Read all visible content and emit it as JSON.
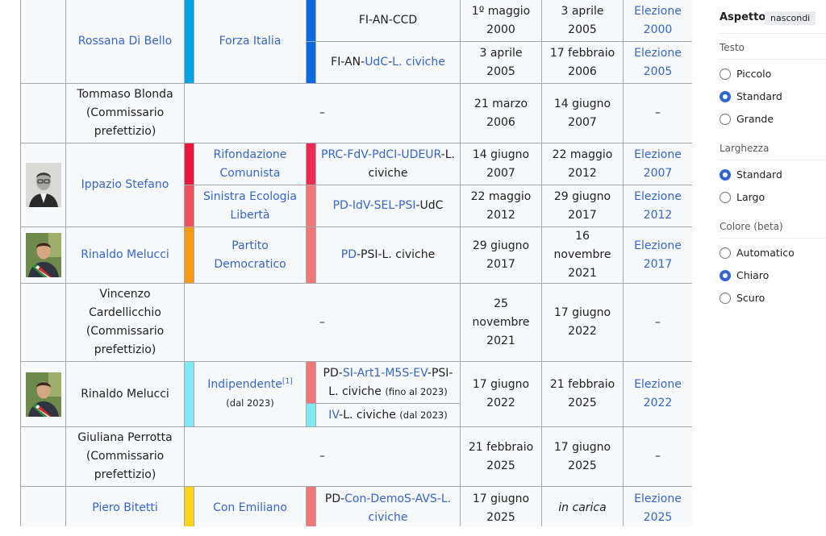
{
  "rows": {
    "r1": {
      "name": "Rossana Di Bello",
      "party": "Forza Italia",
      "coal_a": "FI-AN-CCD",
      "start_a": "1º maggio 2000",
      "end_a": "3 aprile 2005",
      "elect_a": "Elezione 2000",
      "coal_b_1": "FI-AN-",
      "coal_b_2": "UdC",
      "coal_b_3": "-",
      "coal_b_4": "L. civiche",
      "start_b": "3 aprile 2005",
      "end_b": "17 febbraio 2006",
      "elect_b": "Elezione 2005"
    },
    "r2": {
      "name": "Tommaso Blonda (Commissario prefettizio)",
      "dash": "–",
      "start": "21 marzo 2006",
      "end": "14 giugno 2007",
      "elect": "–"
    },
    "r3": {
      "name": "Ippazio Stefano",
      "party_a": "Rifondazione Comunista",
      "coal_a_links": "PRC-FdV-PdCI-UDEUR",
      "coal_a_rest": "-L. civiche",
      "start_a": "14 giugno 2007",
      "end_a": "22 maggio 2012",
      "elect_a": "Elezione 2007",
      "party_b": "Sinistra Ecologia Libertà",
      "coal_b_links": "PD-IdV-SEL-PSI",
      "coal_b_rest": "-UdC",
      "start_b": "22 maggio 2012",
      "end_b": "29 giugno 2017",
      "elect_b": "Elezione 2012"
    },
    "r4": {
      "name": "Rinaldo Melucci",
      "party": "Partito Democratico",
      "coal_link": "PD",
      "coal_rest": "-PSI-L. civiche",
      "start": "29 giugno 2017",
      "end": "16 novembre 2021",
      "elect": "Elezione 2017"
    },
    "r5": {
      "name": "Vincenzo Cardellicchio (Commissario prefettizio)",
      "dash": "–",
      "start": "25 novembre 2021",
      "end": "17 giugno 2022",
      "elect": "–"
    },
    "r6": {
      "name": "Rinaldo Melucci",
      "party": "Indipendente",
      "ref": "[1]",
      "party_note": "(dal 2023)",
      "coal_a_pre": "PD-",
      "coal_a_links": "SI-Art1-M5S-EV",
      "coal_a_rest": "-PSI-L. civiche",
      "coal_a_note": "(fino al 2023)",
      "coal_b_link": "IV",
      "coal_b_rest": "-L. civiche",
      "coal_b_note": "(dal 2023)",
      "start": "17 giugno 2022",
      "end": "21 febbraio 2025",
      "elect": "Elezione 2022"
    },
    "r7": {
      "name": "Giuliana Perrotta (Commissario prefettizio)",
      "dash": "–",
      "start": "21 febbraio 2025",
      "end": "17 giugno 2025",
      "elect": "–"
    },
    "r8": {
      "name": "Piero Bitetti",
      "party": "Con Emiliano",
      "coal_pre": "PD-",
      "coal_links": "Con-DemoS-AVS-L. civiche",
      "start": "17 giugno 2025",
      "end": "in carica",
      "elect": "Elezione 2025"
    }
  },
  "colors": {
    "forza_italia": "#00a2e0",
    "fi_coalition": "#0a6be0",
    "rifondazione": "#e8173c",
    "rif_coalition": "#ee2a52",
    "sel": "#f05060",
    "pd_coalition": "#f07878",
    "pd": "#f89a12",
    "independent": "#7fe8f4",
    "con_emiliano": "#ffd21a"
  },
  "panel": {
    "title": "Aspetto",
    "hide": "nascondi",
    "text_label": "Testo",
    "text_opts": [
      "Piccolo",
      "Standard",
      "Grande"
    ],
    "width_label": "Larghezza",
    "width_opts": [
      "Standard",
      "Largo"
    ],
    "color_label": "Colore (beta)",
    "color_opts": [
      "Automatico",
      "Chiaro",
      "Scuro"
    ]
  }
}
